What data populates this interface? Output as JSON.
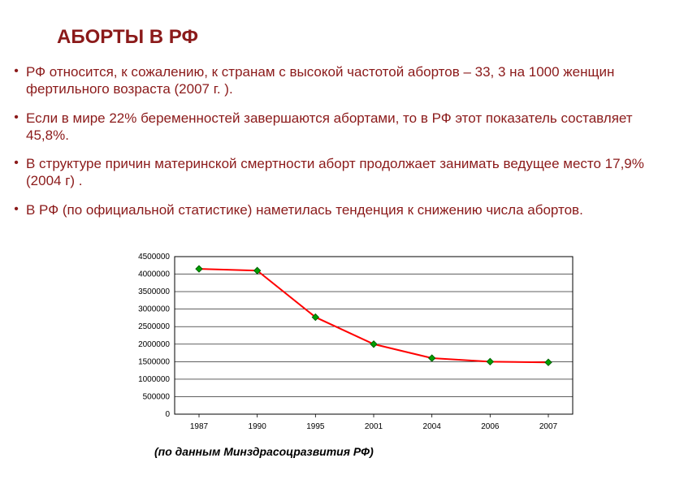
{
  "title": "АБОРТЫ В РФ",
  "bullets": [
    "РФ относится, к сожалению, к странам с высокой частотой абортов – 33, 3 на 1000 женщин фертильного возраста (2007 г. ).",
    "Если в мире 22% беременностей завершаются абортами, то в РФ этот показатель составляет 45,8%.",
    "В структуре причин материнской смертности аборт продолжает занимать ведущее место 17,9% (2004 г) .",
    "В РФ (по официальной статистике) наметилась тенденция к снижению числа абортов."
  ],
  "caption": "(по данным Минздрасоцразвития РФ)",
  "chart": {
    "type": "line",
    "categories": [
      "1987",
      "1990",
      "1995",
      "2001",
      "2004",
      "2006",
      "2007"
    ],
    "values": [
      4150000,
      4100000,
      2770000,
      2000000,
      1600000,
      1500000,
      1480000
    ],
    "ylim": [
      0,
      4500000
    ],
    "ytick_step": 500000,
    "ytick_labels": [
      "0",
      "500000",
      "1000000",
      "1500000",
      "2000000",
      "2500000",
      "3000000",
      "3500000",
      "4000000",
      "4500000"
    ],
    "line_color": "#ff0000",
    "line_width": 2,
    "marker_color": "#00a000",
    "marker_stroke": "#006000",
    "marker_size": 4,
    "axis_color": "#000000",
    "grid_color": "#000000",
    "grid_width": 0.6,
    "background_color": "#ffffff",
    "text_color": "#000000",
    "tick_font_size": 10
  }
}
